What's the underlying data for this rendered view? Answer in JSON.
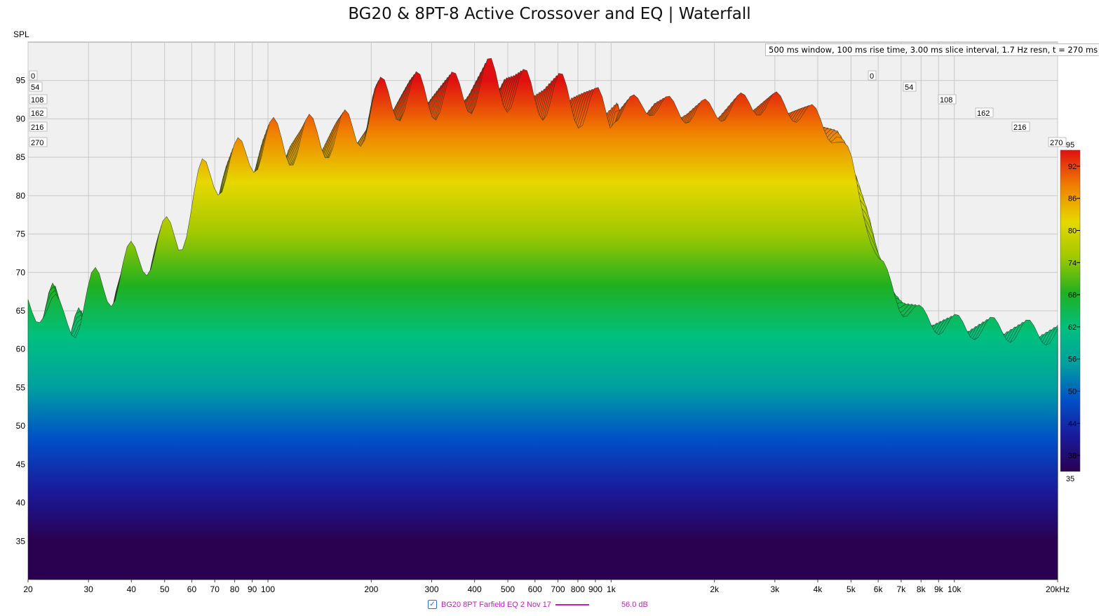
{
  "title": "BG20 & 8PT-8 Active Crossover and EQ | Waterfall",
  "info": "500 ms window, 100 ms rise time, 3.00 ms slice interval, 1.7 Hz resn, t = 270 ms",
  "legend": {
    "checked": "✓",
    "label": "BG20 8PT Farfield EQ 2 Nov 17",
    "value": "56.0 dB"
  },
  "chart_data": {
    "type": "area",
    "chart_kind": "waterfall",
    "title": "BG20 & 8PT-8 Active Crossover and EQ | Waterfall",
    "ylabel": "SPL",
    "xlabel": "",
    "x_scale": "log",
    "xlim": [
      20,
      20000
    ],
    "ylim": [
      30,
      100
    ],
    "y_ticks": [
      35,
      40,
      45,
      50,
      55,
      60,
      65,
      70,
      75,
      80,
      85,
      90,
      95
    ],
    "x_ticks": [
      {
        "v": 20,
        "t": "20"
      },
      {
        "v": 30,
        "t": "30"
      },
      {
        "v": 40,
        "t": "40"
      },
      {
        "v": 50,
        "t": "50"
      },
      {
        "v": 60,
        "t": "60"
      },
      {
        "v": 70,
        "t": "70"
      },
      {
        "v": 80,
        "t": "80"
      },
      {
        "v": 90,
        "t": "90"
      },
      {
        "v": 100,
        "t": "100"
      },
      {
        "v": 200,
        "t": "200"
      },
      {
        "v": 300,
        "t": "300"
      },
      {
        "v": 400,
        "t": "400"
      },
      {
        "v": 500,
        "t": "500"
      },
      {
        "v": 600,
        "t": "600"
      },
      {
        "v": 700,
        "t": "700"
      },
      {
        "v": 800,
        "t": "800"
      },
      {
        "v": 900,
        "t": "900"
      },
      {
        "v": 1000,
        "t": "1k"
      },
      {
        "v": 2000,
        "t": "2k"
      },
      {
        "v": 3000,
        "t": "3k"
      },
      {
        "v": 4000,
        "t": "4k"
      },
      {
        "v": 5000,
        "t": "5k"
      },
      {
        "v": 6000,
        "t": "6k"
      },
      {
        "v": 7000,
        "t": "7k"
      },
      {
        "v": 8000,
        "t": "8k"
      },
      {
        "v": 9000,
        "t": "9k"
      },
      {
        "v": 10000,
        "t": "10k"
      },
      {
        "v": 20000,
        "t": "20kHz"
      }
    ],
    "time_axis_ms": [
      "0",
      "54",
      "108",
      "162",
      "216",
      "270"
    ],
    "colorbar": {
      "range": [
        35,
        95
      ],
      "ticks": [
        38,
        44,
        50,
        56,
        62,
        68,
        74,
        80,
        86,
        92
      ],
      "min_label": "35",
      "max_label": "95",
      "stops": [
        "#2a0050",
        "#1a1a9c",
        "#0050c8",
        "#00a0a0",
        "#00c080",
        "#20b020",
        "#a0c800",
        "#e6d800",
        "#f08000",
        "#e01010"
      ]
    },
    "series": [
      {
        "name": "BG20 8PT Farfield EQ 2 Nov 17",
        "front_slice_t_ms": 0,
        "x": [
          20,
          22,
          25,
          28,
          32,
          36,
          40,
          45,
          50,
          55,
          60,
          65,
          70,
          80,
          90,
          100,
          120,
          150,
          180,
          200,
          250,
          300,
          350,
          400,
          450,
          500,
          600,
          700,
          800,
          900,
          1000,
          1300,
          1600,
          2000,
          2500,
          3000,
          3500,
          4000,
          4500,
          5000,
          5500,
          6000,
          7000,
          8000,
          10000,
          20000
        ],
        "values": [
          65,
          67,
          63,
          65,
          68,
          69,
          71,
          73,
          74,
          75,
          79,
          82,
          83,
          84,
          86,
          87,
          87,
          88,
          88,
          92,
          93,
          93,
          93,
          94,
          95,
          94,
          93,
          93,
          92,
          91,
          91,
          92,
          91,
          91,
          92,
          92,
          91,
          90,
          88,
          84,
          78,
          71,
          66,
          64,
          63,
          62
        ]
      }
    ],
    "time_decay_db_over_270ms": 8,
    "floor_level": 30
  }
}
